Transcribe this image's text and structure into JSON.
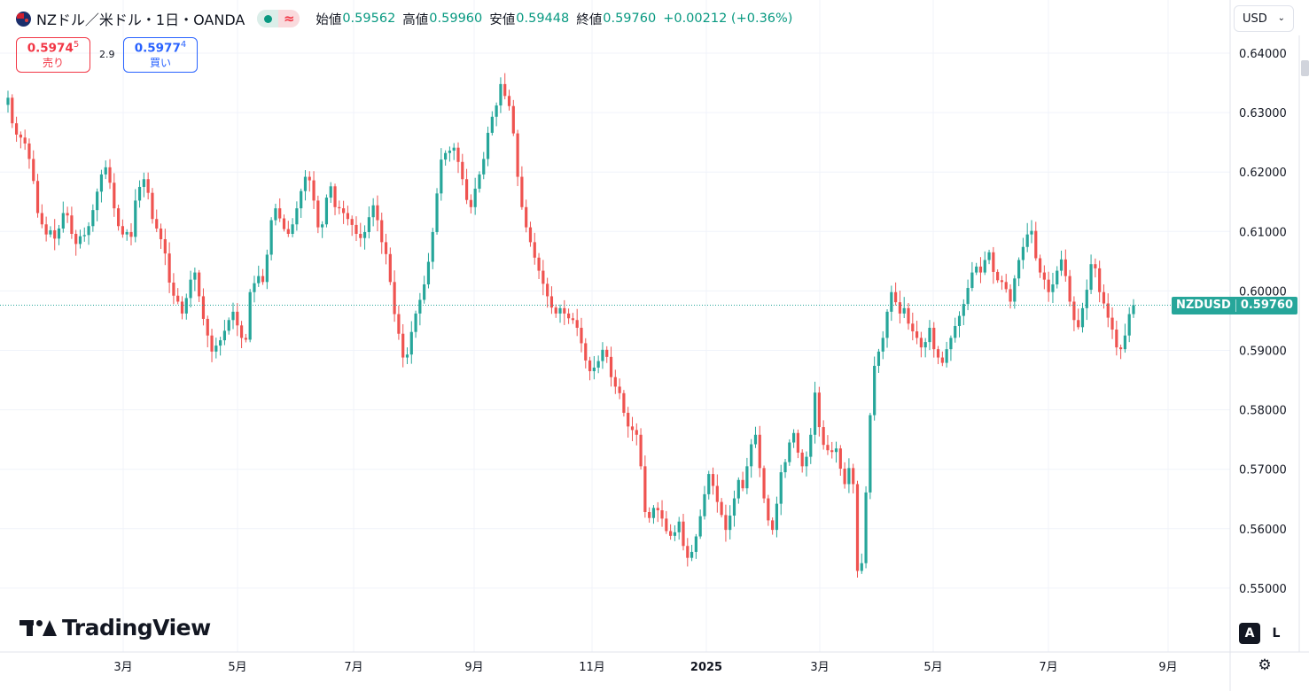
{
  "header": {
    "symbol": "NZドル／米ドル・1日・OANDA",
    "open_label": "始値",
    "open": "0.59562",
    "high_label": "高値",
    "high": "0.59960",
    "low_label": "安値",
    "low": "0.59448",
    "close_label": "終値",
    "close": "0.59760",
    "change": "+0.00212 (+0.36%)",
    "wave_symbol": "≈",
    "flag_icon": "nz-flag-icon"
  },
  "trade": {
    "sell_price": "0.5974",
    "sell_sup": "5",
    "sell_label": "売り",
    "spread": "2.9",
    "buy_price": "0.5977",
    "buy_sup": "4",
    "buy_label": "買い"
  },
  "currency": {
    "label": "USD"
  },
  "price_tag": {
    "symbol": "NZDUSD",
    "value": "0.59760"
  },
  "logo": {
    "text": "TradingView"
  },
  "scale_buttons": {
    "auto": "A",
    "log": "L"
  },
  "colors": {
    "up": "#26a69a",
    "down": "#ef5350",
    "grid": "#f0f3fa",
    "axis_text": "#131722"
  },
  "chart_data": {
    "type": "candlestick",
    "ylim": [
      0.545,
      0.645
    ],
    "y_ticks": [
      "0.64000",
      "0.63000",
      "0.62000",
      "0.61000",
      "0.60000",
      "0.59000",
      "0.58000",
      "0.57000",
      "0.56000",
      "0.55000"
    ],
    "x_ticks": [
      "3月",
      "5月",
      "7月",
      "9月",
      "11月",
      "2025",
      "3月",
      "5月",
      "7月",
      "9月"
    ],
    "grid": true,
    "last_price": 0.5976,
    "close_series": [
      0.6325,
      0.6282,
      0.6263,
      0.6258,
      0.6248,
      0.6222,
      0.6185,
      0.6131,
      0.6112,
      0.6095,
      0.6102,
      0.6088,
      0.6105,
      0.6131,
      0.6127,
      0.6096,
      0.6079,
      0.6092,
      0.6094,
      0.6109,
      0.6136,
      0.6167,
      0.6196,
      0.6208,
      0.6182,
      0.6139,
      0.6109,
      0.6095,
      0.6099,
      0.6091,
      0.6152,
      0.6175,
      0.6188,
      0.6165,
      0.6121,
      0.6105,
      0.6087,
      0.6063,
      0.6014,
      0.5992,
      0.5982,
      0.5962,
      0.5988,
      0.6019,
      0.6031,
      0.5991,
      0.5953,
      0.5925,
      0.5898,
      0.5908,
      0.5917,
      0.5933,
      0.5951,
      0.5965,
      0.5942,
      0.5921,
      0.5918,
      0.5998,
      0.6013,
      0.6025,
      0.6015,
      0.6061,
      0.6119,
      0.6139,
      0.6122,
      0.6104,
      0.6096,
      0.6112,
      0.6139,
      0.6168,
      0.6192,
      0.6186,
      0.6152,
      0.6107,
      0.6112,
      0.6157,
      0.6176,
      0.6141,
      0.6139,
      0.6131,
      0.6121,
      0.6111,
      0.6096,
      0.6089,
      0.6099,
      0.6124,
      0.6144,
      0.6119,
      0.6082,
      0.6062,
      0.6015,
      0.5961,
      0.5928,
      0.5888,
      0.5893,
      0.5931,
      0.5962,
      0.5985,
      0.6011,
      0.6049,
      0.6099,
      0.6164,
      0.6221,
      0.6232,
      0.6236,
      0.6241,
      0.6217,
      0.6188,
      0.6153,
      0.6141,
      0.6172,
      0.6196,
      0.6222,
      0.6266,
      0.6293,
      0.6312,
      0.6348,
      0.6328,
      0.6311,
      0.6265,
      0.6192,
      0.6141,
      0.6107,
      0.6082,
      0.6056,
      0.6034,
      0.6012,
      0.5991,
      0.5972,
      0.5962,
      0.5971,
      0.5962,
      0.5954,
      0.5951,
      0.5938,
      0.5912,
      0.5883,
      0.5865,
      0.5871,
      0.5882,
      0.5901,
      0.5889,
      0.5855,
      0.5839,
      0.5828,
      0.5795,
      0.5772,
      0.5766,
      0.5758,
      0.5705,
      0.5628,
      0.5618,
      0.5635,
      0.5631,
      0.5617,
      0.5596,
      0.5588,
      0.5594,
      0.5612,
      0.5571,
      0.5551,
      0.5561,
      0.5587,
      0.5621,
      0.5658,
      0.5692,
      0.5672,
      0.5645,
      0.5623,
      0.5598,
      0.5622,
      0.5651,
      0.5682,
      0.5668,
      0.5705,
      0.5742,
      0.5758,
      0.5702,
      0.5651,
      0.5614,
      0.5598,
      0.5642,
      0.5695,
      0.5712,
      0.5745,
      0.5761,
      0.5728,
      0.5705,
      0.5721,
      0.5758,
      0.5829,
      0.5771,
      0.5741,
      0.5732,
      0.5729,
      0.5735,
      0.5701,
      0.5675,
      0.5702,
      0.5675,
      0.5529,
      0.5542,
      0.5661,
      0.5791,
      0.5874,
      0.5898,
      0.5921,
      0.5965,
      0.5998,
      0.5981,
      0.5962,
      0.5971,
      0.5945,
      0.5932,
      0.5921,
      0.5905,
      0.5914,
      0.5938,
      0.5902,
      0.5888,
      0.5879,
      0.5902,
      0.5921,
      0.5941,
      0.5958,
      0.5978,
      0.6005,
      0.6031,
      0.6041,
      0.6031,
      0.6052,
      0.6065,
      0.6032,
      0.6018,
      0.6015,
      0.6003,
      0.5982,
      0.6021,
      0.6052,
      0.6074,
      0.6095,
      0.6101,
      0.6055,
      0.6031,
      0.6019,
      0.5998,
      0.6011,
      0.6034,
      0.6053,
      0.6025,
      0.5982,
      0.5951,
      0.5939,
      0.5971,
      0.6002,
      0.6045,
      0.6038,
      0.5998,
      0.5979,
      0.5955,
      0.5935,
      0.5905,
      0.5902,
      0.5925,
      0.5961,
      0.5976
    ]
  }
}
